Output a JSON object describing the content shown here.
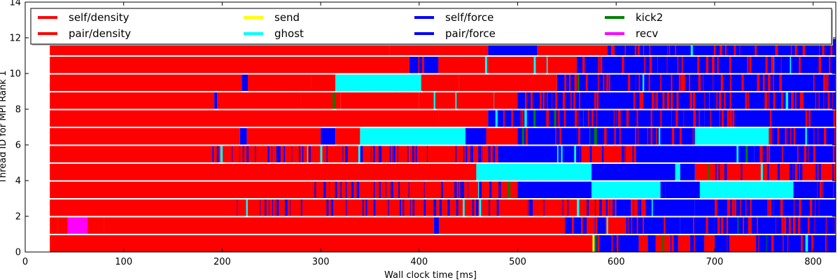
{
  "chart_data": {
    "type": "bar",
    "subtype": "timeline",
    "xlabel": "Wall clock time [ms]",
    "ylabel": "Thread ID for MPI Rank 1",
    "xlim": [
      0,
      823
    ],
    "ylim": [
      0,
      14
    ],
    "x_ticks": [
      0,
      100,
      200,
      300,
      400,
      500,
      600,
      700,
      800
    ],
    "y_ticks": [
      0,
      2,
      4,
      6,
      8,
      10,
      12,
      14
    ],
    "grid": false,
    "legend": {
      "placement": "top",
      "columns": 5,
      "entries": [
        {
          "name": "self/density",
          "color": "#ff0000"
        },
        {
          "name": "pair/density",
          "color": "#ff0000"
        },
        {
          "name": "send",
          "color": "#ffff00"
        },
        {
          "name": "ghost",
          "color": "#00ffff"
        },
        {
          "name": "self/force",
          "color": "#0000ff"
        },
        {
          "name": "pair/force",
          "color": "#0000ff"
        },
        {
          "name": "kick2",
          "color": "#008000"
        },
        {
          "name": "recv",
          "color": "#ff00ff"
        }
      ]
    },
    "colors": {
      "density": "#ff0000",
      "send": "#ffff00",
      "ghost": "#00ffff",
      "force": "#0000ff",
      "kick2": "#008000",
      "recv": "#ff00ff"
    },
    "threads": [
      {
        "thread": 0,
        "segments": [
          [
            25,
            576,
            "density"
          ],
          [
            576,
            578,
            "send"
          ],
          [
            578,
            580,
            "kick2"
          ],
          [
            580,
            623,
            "force"
          ],
          [
            623,
            632,
            "density"
          ],
          [
            632,
            640,
            "force"
          ],
          [
            640,
            655,
            "density"
          ],
          [
            655,
            663,
            "force"
          ],
          [
            663,
            675,
            "density"
          ],
          [
            675,
            690,
            "force"
          ],
          [
            690,
            700,
            "density"
          ],
          [
            700,
            715,
            "force"
          ],
          [
            715,
            742,
            "density"
          ],
          [
            742,
            823,
            "force"
          ]
        ]
      },
      {
        "thread": 1,
        "segments": [
          [
            25,
            33,
            "density"
          ],
          [
            33,
            43,
            "density"
          ],
          [
            43,
            63,
            "recv"
          ],
          [
            63,
            80,
            "density"
          ],
          [
            80,
            415,
            "density"
          ],
          [
            415,
            420,
            "force"
          ],
          [
            420,
            548,
            "density"
          ],
          [
            548,
            570,
            "force"
          ],
          [
            570,
            578,
            "density"
          ],
          [
            578,
            590,
            "force"
          ],
          [
            590,
            610,
            "density"
          ],
          [
            610,
            665,
            "force"
          ],
          [
            665,
            700,
            "force"
          ],
          [
            700,
            823,
            "force"
          ]
        ]
      },
      {
        "thread": 2,
        "segments": [
          [
            25,
            215,
            "density"
          ],
          [
            215,
            420,
            "density"
          ],
          [
            420,
            600,
            "density"
          ],
          [
            600,
            615,
            "force"
          ],
          [
            615,
            630,
            "density"
          ],
          [
            630,
            680,
            "force"
          ],
          [
            680,
            700,
            "force"
          ],
          [
            700,
            760,
            "force"
          ],
          [
            760,
            823,
            "force"
          ]
        ]
      },
      {
        "thread": 3,
        "segments": [
          [
            25,
            290,
            "density"
          ],
          [
            290,
            380,
            "density"
          ],
          [
            380,
            460,
            "density"
          ],
          [
            460,
            500,
            "density"
          ],
          [
            500,
            575,
            "force"
          ],
          [
            575,
            645,
            "ghost"
          ],
          [
            645,
            650,
            "force"
          ],
          [
            650,
            685,
            "force"
          ],
          [
            685,
            780,
            "ghost"
          ],
          [
            780,
            823,
            "force"
          ]
        ]
      },
      {
        "thread": 4,
        "segments": [
          [
            25,
            458,
            "density"
          ],
          [
            458,
            575,
            "ghost"
          ],
          [
            575,
            660,
            "force"
          ],
          [
            660,
            665,
            "ghost"
          ],
          [
            665,
            680,
            "force"
          ],
          [
            680,
            823,
            "density"
          ]
        ]
      },
      {
        "thread": 5,
        "segments": [
          [
            25,
            190,
            "density"
          ],
          [
            190,
            390,
            "density"
          ],
          [
            390,
            480,
            "density"
          ],
          [
            480,
            560,
            "force"
          ],
          [
            560,
            620,
            "density"
          ],
          [
            620,
            690,
            "force"
          ],
          [
            690,
            740,
            "force"
          ],
          [
            740,
            823,
            "force"
          ]
        ]
      },
      {
        "thread": 6,
        "segments": [
          [
            25,
            218,
            "density"
          ],
          [
            218,
            225,
            "force"
          ],
          [
            225,
            300,
            "density"
          ],
          [
            300,
            315,
            "force"
          ],
          [
            315,
            340,
            "density"
          ],
          [
            340,
            447,
            "ghost"
          ],
          [
            447,
            468,
            "force"
          ],
          [
            468,
            500,
            "density"
          ],
          [
            500,
            560,
            "force"
          ],
          [
            560,
            620,
            "force"
          ],
          [
            620,
            680,
            "force"
          ],
          [
            680,
            755,
            "ghost"
          ],
          [
            755,
            823,
            "force"
          ]
        ]
      },
      {
        "thread": 7,
        "segments": [
          [
            25,
            420,
            "density"
          ],
          [
            420,
            470,
            "density"
          ],
          [
            470,
            560,
            "force"
          ],
          [
            560,
            600,
            "force"
          ],
          [
            600,
            690,
            "force"
          ],
          [
            690,
            823,
            "force"
          ]
        ]
      },
      {
        "thread": 8,
        "segments": [
          [
            25,
            192,
            "density"
          ],
          [
            192,
            195,
            "force"
          ],
          [
            195,
            280,
            "density"
          ],
          [
            280,
            320,
            "density"
          ],
          [
            320,
            400,
            "density"
          ],
          [
            400,
            500,
            "density"
          ],
          [
            500,
            560,
            "force"
          ],
          [
            560,
            620,
            "force"
          ],
          [
            620,
            700,
            "force"
          ],
          [
            700,
            823,
            "force"
          ]
        ]
      },
      {
        "thread": 9,
        "segments": [
          [
            25,
            220,
            "density"
          ],
          [
            220,
            226,
            "force"
          ],
          [
            226,
            290,
            "density"
          ],
          [
            290,
            315,
            "density"
          ],
          [
            315,
            402,
            "ghost"
          ],
          [
            402,
            440,
            "density"
          ],
          [
            440,
            540,
            "density"
          ],
          [
            540,
            620,
            "force"
          ],
          [
            620,
            700,
            "force"
          ],
          [
            700,
            823,
            "force"
          ]
        ]
      },
      {
        "thread": 10,
        "segments": [
          [
            25,
            390,
            "density"
          ],
          [
            390,
            420,
            "force"
          ],
          [
            420,
            470,
            "density"
          ],
          [
            470,
            560,
            "density"
          ],
          [
            560,
            640,
            "force"
          ],
          [
            640,
            700,
            "force"
          ],
          [
            700,
            823,
            "force"
          ]
        ]
      },
      {
        "thread": 11,
        "segments": [
          [
            25,
            370,
            "density"
          ],
          [
            370,
            420,
            "density"
          ],
          [
            420,
            470,
            "density"
          ],
          [
            470,
            520,
            "force"
          ],
          [
            520,
            590,
            "density"
          ],
          [
            590,
            700,
            "force"
          ],
          [
            700,
            823,
            "force"
          ]
        ]
      }
    ],
    "interleaved_ranges": [
      {
        "thread": 0,
        "start": 580,
        "end": 823,
        "base": "force",
        "alt": "density"
      },
      {
        "thread": 1,
        "start": 555,
        "end": 823,
        "base": "force",
        "alt": "density"
      },
      {
        "thread": 2,
        "start": 215,
        "end": 700,
        "base": "density",
        "alt": "force"
      },
      {
        "thread": 2,
        "start": 700,
        "end": 823,
        "base": "force",
        "alt": "density"
      },
      {
        "thread": 3,
        "start": 290,
        "end": 575,
        "base": "density",
        "alt": "force"
      },
      {
        "thread": 3,
        "start": 780,
        "end": 823,
        "base": "force",
        "alt": "density"
      },
      {
        "thread": 4,
        "start": 680,
        "end": 823,
        "base": "density",
        "alt": "force"
      },
      {
        "thread": 5,
        "start": 190,
        "end": 740,
        "base": "density",
        "alt": "force"
      },
      {
        "thread": 5,
        "start": 740,
        "end": 823,
        "base": "force",
        "alt": "density"
      },
      {
        "thread": 6,
        "start": 468,
        "end": 680,
        "base": "force",
        "alt": "density"
      },
      {
        "thread": 6,
        "start": 755,
        "end": 823,
        "base": "force",
        "alt": "density"
      },
      {
        "thread": 7,
        "start": 420,
        "end": 823,
        "base": "force",
        "alt": "density"
      },
      {
        "thread": 8,
        "start": 270,
        "end": 823,
        "base": "force",
        "alt": "density"
      },
      {
        "thread": 9,
        "start": 402,
        "end": 823,
        "base": "force",
        "alt": "density"
      },
      {
        "thread": 10,
        "start": 390,
        "end": 823,
        "base": "force",
        "alt": "density"
      },
      {
        "thread": 11,
        "start": 545,
        "end": 823,
        "base": "force",
        "alt": "density"
      }
    ]
  }
}
